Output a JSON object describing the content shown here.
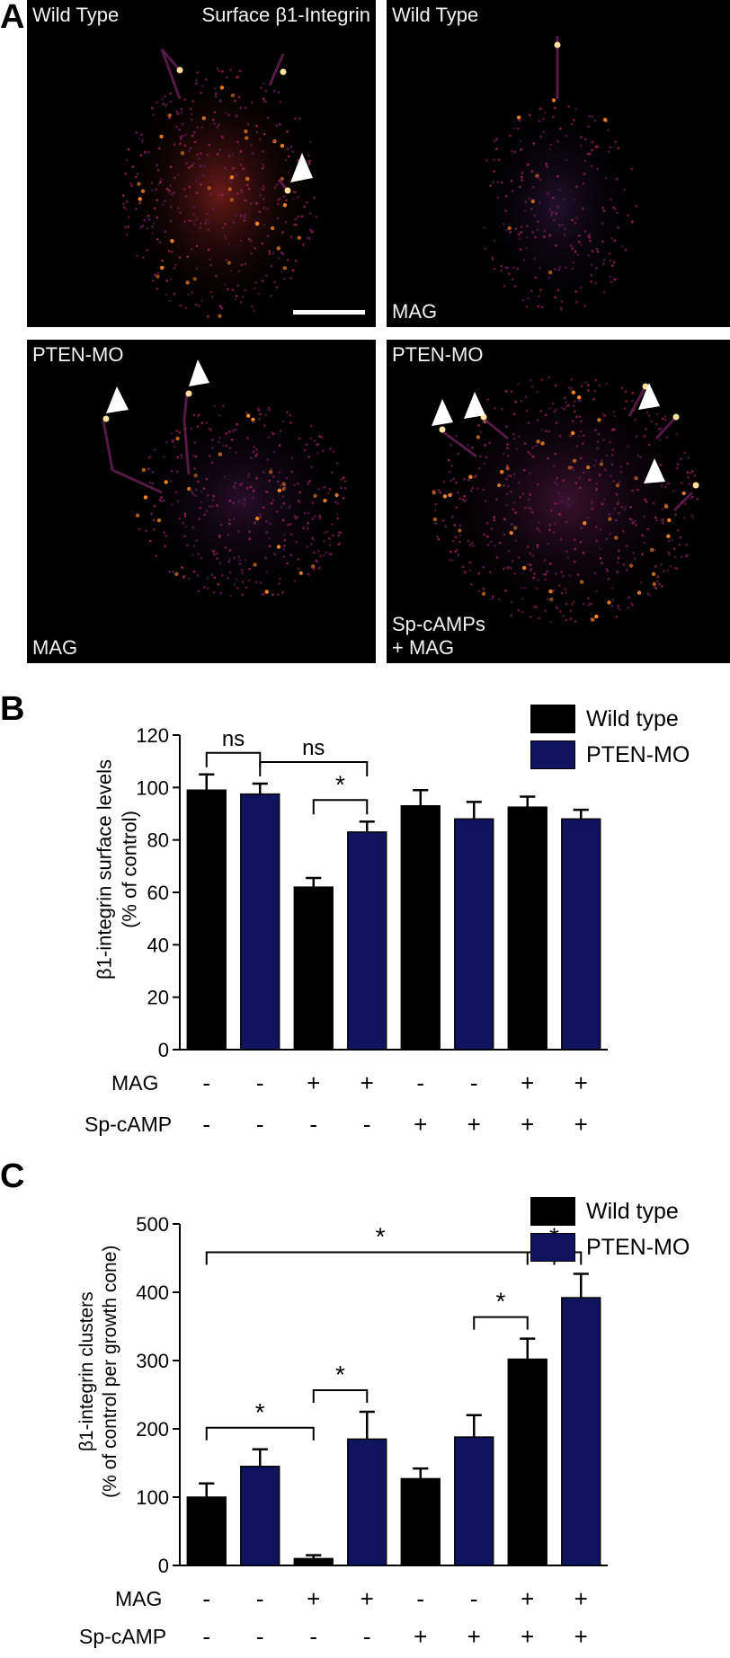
{
  "panel_a": {
    "letter": "A",
    "images": [
      {
        "top_left": "Wild Type",
        "top_right": "Surface β1-Integrin",
        "bottom_left": "",
        "bottom_extra": ""
      },
      {
        "top_left": "Wild Type",
        "top_right": "",
        "bottom_left": "MAG",
        "bottom_extra": ""
      },
      {
        "top_left": "PTEN-MO",
        "top_right": "",
        "bottom_left": "MAG",
        "bottom_extra": ""
      },
      {
        "top_left": "PTEN-MO",
        "top_right": "",
        "bottom_left": "Sp-cAMPs",
        "bottom_extra": "+ MAG"
      }
    ]
  },
  "panel_b": {
    "letter": "B"
  },
  "panel_c": {
    "letter": "C"
  },
  "chart_data": [
    {
      "type": "bar",
      "ylabel_line1": "β1-integrin surface levels",
      "ylabel_line2": "(% of control)",
      "ylim": [
        0,
        120
      ],
      "yticks": [
        0,
        20,
        40,
        60,
        80,
        100,
        120
      ],
      "legend": [
        {
          "label": "Wild type",
          "color": "#000000"
        },
        {
          "label": "PTEN-MO",
          "color": "#10145e"
        }
      ],
      "bars": [
        {
          "series": "Wild type",
          "value": 99,
          "error": 6
        },
        {
          "series": "PTEN-MO",
          "value": 97.5,
          "error": 4
        },
        {
          "series": "Wild type",
          "value": 62,
          "error": 3.5
        },
        {
          "series": "PTEN-MO",
          "value": 83,
          "error": 4
        },
        {
          "series": "Wild type",
          "value": 93,
          "error": 6
        },
        {
          "series": "PTEN-MO",
          "value": 88,
          "error": 6.5
        },
        {
          "series": "Wild type",
          "value": 92.5,
          "error": 4
        },
        {
          "series": "PTEN-MO",
          "value": 88,
          "error": 3.5
        }
      ],
      "conditions": [
        {
          "label": "MAG",
          "signs": [
            "-",
            "-",
            "+",
            "+",
            "-",
            "-",
            "+",
            "+"
          ]
        },
        {
          "label": "Sp-cAMP",
          "signs": [
            "-",
            "-",
            "-",
            "-",
            "+",
            "+",
            "+",
            "+"
          ]
        }
      ],
      "comparisons": [
        {
          "from": 0,
          "to": 1,
          "label": "ns"
        },
        {
          "from": 1,
          "to": 3,
          "label": "ns"
        },
        {
          "from": 2,
          "to": 3,
          "label": "*"
        }
      ]
    },
    {
      "type": "bar",
      "ylabel_line1": "β1-integrin clusters",
      "ylabel_line2": "(% of control per growth cone)",
      "ylim": [
        0,
        500
      ],
      "yticks": [
        0,
        100,
        200,
        300,
        400,
        500
      ],
      "legend": [
        {
          "label": "Wild type",
          "color": "#000000"
        },
        {
          "label": "PTEN-MO",
          "color": "#10145e"
        }
      ],
      "bars": [
        {
          "series": "Wild type",
          "value": 100,
          "error": 20
        },
        {
          "series": "PTEN-MO",
          "value": 145,
          "error": 25
        },
        {
          "series": "Wild type",
          "value": 10,
          "error": 5
        },
        {
          "series": "PTEN-MO",
          "value": 185,
          "error": 40
        },
        {
          "series": "Wild type",
          "value": 127,
          "error": 15
        },
        {
          "series": "PTEN-MO",
          "value": 188,
          "error": 32
        },
        {
          "series": "Wild type",
          "value": 302,
          "error": 30
        },
        {
          "series": "PTEN-MO",
          "value": 392,
          "error": 35
        }
      ],
      "conditions": [
        {
          "label": "MAG",
          "signs": [
            "-",
            "-",
            "+",
            "+",
            "-",
            "-",
            "+",
            "+"
          ]
        },
        {
          "label": "Sp-cAMP",
          "signs": [
            "-",
            "-",
            "-",
            "-",
            "+",
            "+",
            "+",
            "+"
          ]
        }
      ],
      "comparisons": [
        {
          "from": 0,
          "to": 2,
          "label": "*"
        },
        {
          "from": 2,
          "to": 3,
          "label": "*"
        },
        {
          "from": 5,
          "to": 6,
          "label": "*"
        },
        {
          "from": 6,
          "to": 7,
          "label": "*"
        },
        {
          "from": 0,
          "to": 6.5,
          "label": "*"
        }
      ]
    }
  ]
}
